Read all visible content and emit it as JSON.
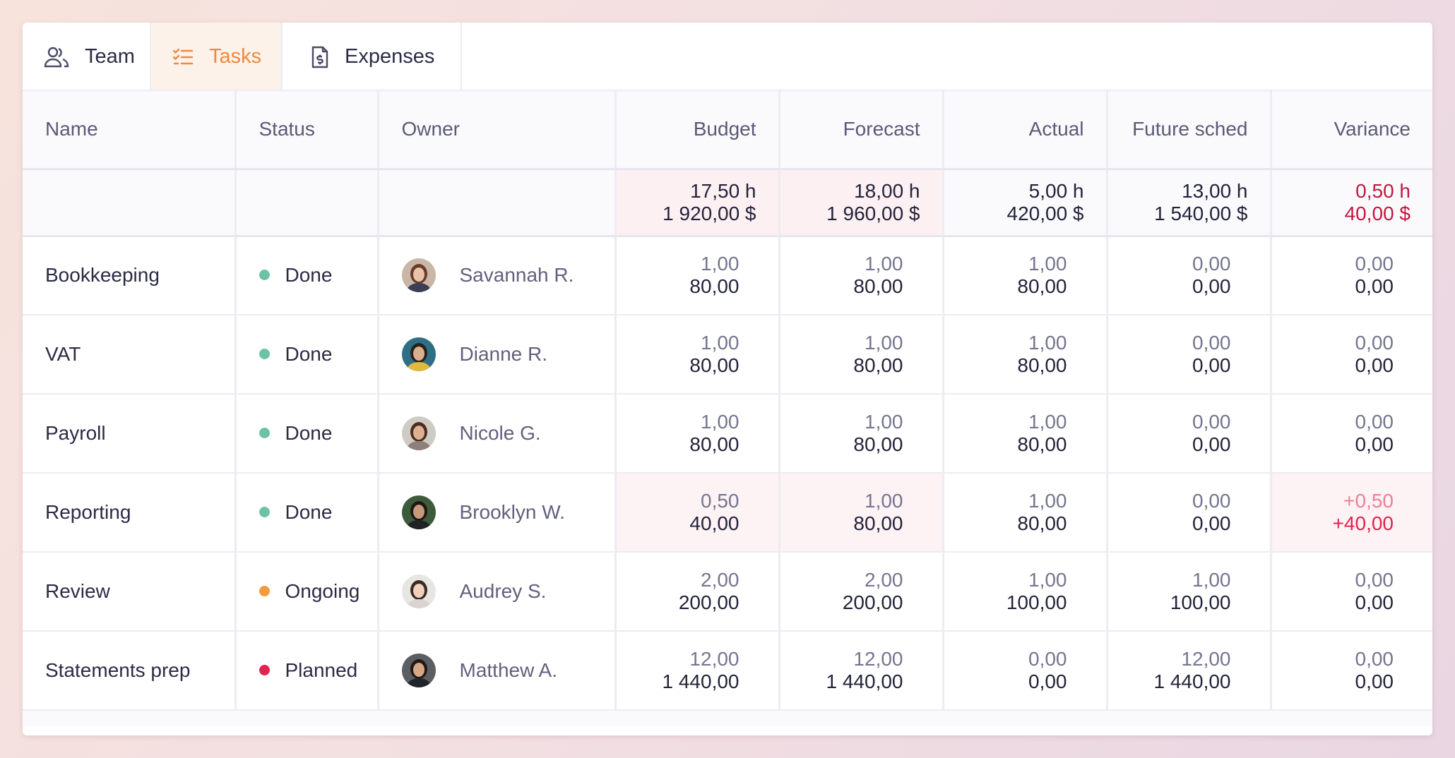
{
  "tabs": [
    {
      "label": "Team",
      "icon": "users-icon",
      "active": false
    },
    {
      "label": "Tasks",
      "icon": "checklist-icon",
      "active": true
    },
    {
      "label": "Expenses",
      "icon": "invoice-dollar-icon",
      "active": false
    }
  ],
  "colors": {
    "accent": "#f0883e",
    "status_done": "#6cc3a4",
    "status_ongoing": "#f59a3c",
    "status_planned": "#e2234f",
    "negative": "#c4173f"
  },
  "columns": {
    "name": "Name",
    "status": "Status",
    "owner": "Owner",
    "budget": "Budget",
    "forecast": "Forecast",
    "actual": "Actual",
    "future": "Future sched",
    "variance": "Variance"
  },
  "totals": {
    "budget": {
      "hours": "17,50 h",
      "money": "1 920,00 $"
    },
    "forecast": {
      "hours": "18,00 h",
      "money": "1 960,00 $"
    },
    "actual": {
      "hours": "5,00 h",
      "money": "420,00 $"
    },
    "future": {
      "hours": "13,00 h",
      "money": "1 540,00 $"
    },
    "variance": {
      "hours": "0,50 h",
      "money": "40,00 $"
    }
  },
  "rows": [
    {
      "name": "Bookkeeping",
      "status": "Done",
      "owner": "Savannah R.",
      "budget": [
        "1,00",
        "80,00"
      ],
      "forecast": [
        "1,00",
        "80,00"
      ],
      "actual": [
        "1,00",
        "80,00"
      ],
      "future": [
        "0,00",
        "0,00"
      ],
      "variance": [
        "0,00",
        "0,00"
      ]
    },
    {
      "name": "VAT",
      "status": "Done",
      "owner": "Dianne R.",
      "budget": [
        "1,00",
        "80,00"
      ],
      "forecast": [
        "1,00",
        "80,00"
      ],
      "actual": [
        "1,00",
        "80,00"
      ],
      "future": [
        "0,00",
        "0,00"
      ],
      "variance": [
        "0,00",
        "0,00"
      ]
    },
    {
      "name": "Payroll",
      "status": "Done",
      "owner": "Nicole G.",
      "budget": [
        "1,00",
        "80,00"
      ],
      "forecast": [
        "1,00",
        "80,00"
      ],
      "actual": [
        "1,00",
        "80,00"
      ],
      "future": [
        "0,00",
        "0,00"
      ],
      "variance": [
        "0,00",
        "0,00"
      ]
    },
    {
      "name": "Reporting",
      "status": "Done",
      "owner": "Brooklyn W.",
      "budget": [
        "0,50",
        "40,00"
      ],
      "forecast": [
        "1,00",
        "80,00"
      ],
      "actual": [
        "1,00",
        "80,00"
      ],
      "future": [
        "0,00",
        "0,00"
      ],
      "variance": [
        "+0,50",
        "+40,00"
      ]
    },
    {
      "name": "Review",
      "status": "Ongoing",
      "owner": "Audrey S.",
      "budget": [
        "2,00",
        "200,00"
      ],
      "forecast": [
        "2,00",
        "200,00"
      ],
      "actual": [
        "1,00",
        "100,00"
      ],
      "future": [
        "1,00",
        "100,00"
      ],
      "variance": [
        "0,00",
        "0,00"
      ]
    },
    {
      "name": "Statements prep",
      "status": "Planned",
      "owner": "Matthew A.",
      "budget": [
        "12,00",
        "1 440,00"
      ],
      "forecast": [
        "12,00",
        "1 440,00"
      ],
      "actual": [
        "0,00",
        "0,00"
      ],
      "future": [
        "12,00",
        "1 440,00"
      ],
      "variance": [
        "0,00",
        "0,00"
      ]
    }
  ]
}
